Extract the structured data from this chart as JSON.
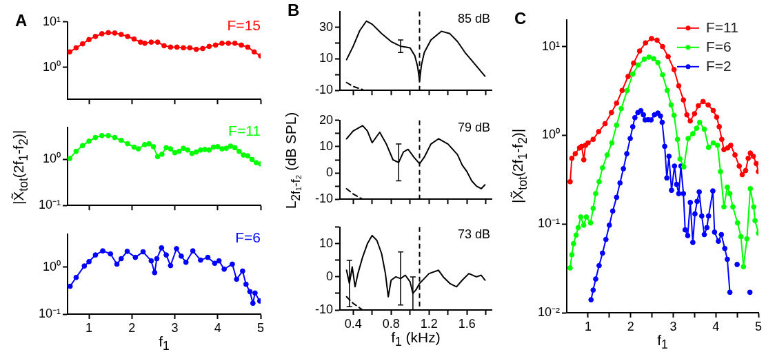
{
  "chart_data": [
    {
      "type": "line",
      "title": "A",
      "marker": "circle",
      "log": true,
      "tick_labels": "y",
      "xlim": [
        0.5,
        5
      ],
      "xticks": [
        1,
        2,
        3,
        4,
        5
      ],
      "ylim": [
        0.2,
        10
      ],
      "yticks": [
        {
          "value": 1,
          "label": "10⁰"
        },
        {
          "value": 10,
          "label": "10¹"
        }
      ],
      "series": [
        {
          "name": "F=15",
          "color": "#ff0000",
          "x": [
            0.55,
            0.7,
            0.85,
            1.0,
            1.15,
            1.3,
            1.45,
            1.6,
            1.75,
            1.9,
            2.05,
            2.2,
            2.3,
            2.45,
            2.6,
            2.75,
            2.9,
            3.05,
            3.2,
            3.35,
            3.5,
            3.65,
            3.8,
            3.95,
            4.1,
            4.25,
            4.4,
            4.55,
            4.7,
            4.85,
            5.0
          ],
          "values": [
            2.2,
            2.7,
            3.3,
            4.1,
            4.8,
            5.5,
            5.8,
            5.7,
            5.3,
            4.8,
            4.2,
            3.6,
            3.4,
            3.6,
            3.6,
            3.0,
            2.8,
            2.8,
            2.7,
            2.7,
            2.5,
            2.6,
            2.9,
            3.1,
            3.4,
            3.4,
            3.4,
            3.1,
            2.8,
            2.2,
            1.8
          ]
        }
      ]
    },
    {
      "type": "line",
      "marker": "circle",
      "log": true,
      "tick_labels": "y",
      "ylabel": "|X̃$_{tot}$(2f$_{1}$-f$_{2}$)|",
      "xlim": [
        0.5,
        5
      ],
      "xticks": [
        1,
        2,
        3,
        4,
        5
      ],
      "ylim": [
        0.1,
        5
      ],
      "yticks": [
        {
          "value": 0.1,
          "label": "10⁻¹"
        },
        {
          "value": 1,
          "label": "10⁰"
        }
      ],
      "series": [
        {
          "name": "F=11",
          "color": "#00ff00",
          "x": [
            0.55,
            0.7,
            0.85,
            1.0,
            1.15,
            1.3,
            1.45,
            1.6,
            1.75,
            1.9,
            2.05,
            2.15,
            2.3,
            2.4,
            2.5,
            2.6,
            2.7,
            2.8,
            2.9,
            3.0,
            3.1,
            3.2,
            3.3,
            3.4,
            3.5,
            3.6,
            3.7,
            3.8,
            3.9,
            4.0,
            4.1,
            4.2,
            4.3,
            4.4,
            4.5,
            4.6,
            4.7,
            4.8,
            4.9,
            5.0
          ],
          "values": [
            1.05,
            1.5,
            2.0,
            2.5,
            3.0,
            3.3,
            3.3,
            3.0,
            2.6,
            2.2,
            1.85,
            1.7,
            2.1,
            2.2,
            1.9,
            1.15,
            1.3,
            1.8,
            1.7,
            1.4,
            1.5,
            1.75,
            1.6,
            1.35,
            1.45,
            1.6,
            1.65,
            1.6,
            1.85,
            1.9,
            1.7,
            1.75,
            1.95,
            1.8,
            1.5,
            1.25,
            1.2,
            1.0,
            0.85,
            0.8
          ]
        }
      ]
    },
    {
      "type": "line",
      "marker": "circle",
      "log": true,
      "xlabel": "f$_{1}$",
      "xlim": [
        0.5,
        5
      ],
      "xticks": [
        1,
        2,
        3,
        4,
        5
      ],
      "ylim": [
        0.1,
        5
      ],
      "yticks": [
        {
          "value": 0.1,
          "label": "10⁻¹"
        },
        {
          "value": 1,
          "label": "10⁰"
        }
      ],
      "series": [
        {
          "name": "F=6",
          "color": "#0000ff",
          "x": [
            0.56,
            0.7,
            0.89,
            1.0,
            1.15,
            1.32,
            1.5,
            1.65,
            1.75,
            1.89,
            2.08,
            2.26,
            2.45,
            2.53,
            2.58,
            2.69,
            2.8,
            2.9,
            3.04,
            3.15,
            3.26,
            3.42,
            3.6,
            3.77,
            3.93,
            4.03,
            4.15,
            4.34,
            4.44,
            4.58,
            4.66,
            4.75,
            4.82,
            4.87,
            4.98
          ],
          "values": [
            0.39,
            0.6,
            1.05,
            1.3,
            1.8,
            2.2,
            1.9,
            1.15,
            1.5,
            2.15,
            1.6,
            2.1,
            1.35,
            0.76,
            1.5,
            2.55,
            1.8,
            1.07,
            2.45,
            1.7,
            1.26,
            2.2,
            1.4,
            1.6,
            1.2,
            1.35,
            0.9,
            1.15,
            0.55,
            0.82,
            0.43,
            0.3,
            0.17,
            0.28,
            0.19
          ]
        }
      ]
    },
    {
      "type": "line",
      "title": "B",
      "marker": "none",
      "tick_labels": "y",
      "annotations": [
        "85 dB"
      ],
      "xlim": [
        0.26,
        1.86
      ],
      "xticks": [
        0.4,
        {
          "value": 0.6,
          "label": null
        },
        0.8,
        {
          "value": 1.0,
          "label": null
        },
        1.2,
        {
          "value": 1.4,
          "label": null
        },
        1.6,
        {
          "value": 1.8,
          "label": null
        }
      ],
      "ylim": [
        -10,
        40
      ],
      "yticks": [
        -10,
        {
          "value": 0,
          "label": null
        },
        10,
        {
          "value": 20,
          "label": null
        },
        30
      ],
      "ref_lines": [
        {
          "axis": "x",
          "value": 1.1,
          "line_style": "dashed",
          "color": "#000000"
        }
      ],
      "series": [
        {
          "color": "#000000",
          "x": [
            0.33,
            0.4,
            0.47,
            0.54,
            0.6,
            0.7,
            0.8,
            0.9,
            0.95,
            1.0,
            1.05,
            1.08,
            1.1,
            1.12,
            1.15,
            1.22,
            1.33,
            1.42,
            1.5,
            1.58,
            1.65,
            1.72,
            1.79
          ],
          "values": [
            9.5,
            18,
            28,
            34,
            32,
            26,
            21,
            18,
            17.5,
            17,
            12,
            5,
            -4,
            6,
            14,
            22,
            27.5,
            26,
            21,
            14,
            9,
            4,
            -1
          ],
          "errors": [
            null,
            null,
            null,
            null,
            null,
            null,
            null,
            4,
            null,
            null,
            null,
            null,
            null,
            null,
            null,
            null,
            null,
            null,
            null,
            null,
            null,
            null,
            null
          ]
        },
        {
          "color": "#000000",
          "line_style": "dashed",
          "x": [
            0.33,
            0.4,
            0.5
          ],
          "values": [
            -5,
            -7.5,
            -9.5
          ]
        }
      ]
    },
    {
      "type": "line",
      "marker": "none",
      "tick_labels": "y",
      "annotations": [
        "79 dB"
      ],
      "ylabel": "L$_{2f₁-f₂}$ (dB SPL)",
      "xlim": [
        0.26,
        1.86
      ],
      "xticks": [
        0.4,
        {
          "value": 0.6,
          "label": null
        },
        0.8,
        {
          "value": 1.0,
          "label": null
        },
        1.2,
        {
          "value": 1.4,
          "label": null
        },
        1.6,
        {
          "value": 1.8,
          "label": null
        }
      ],
      "ylim": [
        -10,
        20
      ],
      "yticks": [
        -10,
        {
          "value": -5,
          "label": null
        },
        0,
        {
          "value": 5,
          "label": null
        },
        10,
        {
          "value": 15,
          "label": null
        },
        20
      ],
      "ref_lines": [
        {
          "axis": "x",
          "value": 1.1,
          "line_style": "dashed",
          "color": "#000000"
        }
      ],
      "series": [
        {
          "color": "#000000",
          "x": [
            0.33,
            0.4,
            0.5,
            0.55,
            0.6,
            0.68,
            0.75,
            0.82,
            0.88,
            0.93,
            0.98,
            1.04,
            1.1,
            1.15,
            1.22,
            1.3,
            1.4,
            1.5,
            1.55,
            1.6,
            1.65,
            1.7,
            1.75,
            1.79
          ],
          "values": [
            13,
            16,
            18,
            16,
            11.5,
            15.5,
            11,
            5,
            4,
            8,
            9,
            6,
            3.5,
            6,
            11,
            13,
            11,
            7,
            3,
            0.5,
            -3,
            -5,
            -6,
            -4.5
          ],
          "errors": [
            null,
            null,
            null,
            null,
            null,
            null,
            null,
            null,
            7,
            null,
            null,
            null,
            null,
            null,
            null,
            null,
            null,
            null,
            null,
            null,
            null,
            null,
            null,
            null
          ]
        },
        {
          "color": "#000000",
          "line_style": "dashed",
          "x": [
            0.33,
            0.4,
            0.5
          ],
          "values": [
            -6,
            -8,
            -10
          ]
        }
      ]
    },
    {
      "type": "line",
      "marker": "none",
      "annotations": [
        "73 dB"
      ],
      "xlabel": "f$_{1}$ (kHz)",
      "xlim": [
        0.26,
        1.86
      ],
      "xticks": [
        0.4,
        {
          "value": 0.6,
          "label": null
        },
        0.8,
        {
          "value": 1.0,
          "label": null
        },
        1.2,
        {
          "value": 1.4,
          "label": null
        },
        1.6,
        {
          "value": 1.8,
          "label": null
        }
      ],
      "ylim": [
        -10,
        15
      ],
      "yticks": [
        -10,
        {
          "value": -5,
          "label": null
        },
        0,
        {
          "value": 5,
          "label": null
        },
        10,
        {
          "value": 15,
          "label": null
        }
      ],
      "ref_lines": [
        {
          "axis": "x",
          "value": 1.1,
          "line_style": "dashed",
          "color": "#000000"
        }
      ],
      "series": [
        {
          "color": "#000000",
          "x": [
            0.33,
            0.36,
            0.39,
            0.42,
            0.45,
            0.5,
            0.55,
            0.6,
            0.65,
            0.7,
            0.74,
            0.77,
            0.8,
            0.85,
            0.9,
            0.95,
            1.0,
            1.03,
            1.06,
            1.1,
            1.15,
            1.2,
            1.3,
            1.35,
            1.42,
            1.49,
            1.55,
            1.62,
            1.7,
            1.75,
            1.79
          ],
          "values": [
            2,
            -2,
            3,
            -3,
            1,
            6,
            10,
            12.5,
            11,
            7,
            1,
            -6,
            -1,
            0,
            -0.5,
            0.5,
            -1.5,
            -5,
            -4,
            -2,
            -0.5,
            1,
            2,
            0,
            -2,
            -3,
            -1,
            1,
            0,
            0.5,
            -1
          ],
          "errors": [
            null,
            7,
            null,
            null,
            null,
            null,
            null,
            null,
            null,
            null,
            null,
            null,
            null,
            null,
            8,
            null,
            null,
            5,
            null,
            null,
            null,
            null,
            null,
            null,
            null,
            null,
            null,
            null,
            null,
            null,
            null
          ]
        },
        {
          "color": "#000000",
          "line_style": "dashed",
          "x": [
            0.33,
            0.4,
            0.45,
            0.5
          ],
          "values": [
            -6,
            -8,
            -9,
            -10
          ]
        }
      ]
    },
    {
      "type": "line",
      "title": "C",
      "marker": "circle",
      "log": true,
      "legend": "top right",
      "xlabel": "f$_{1}$",
      "ylabel": "|X̃$_{tot}$(2f$_{1}$-f$_{2}$)|",
      "xlim": [
        0.5,
        5
      ],
      "xticks": [
        1,
        {
          "value": 1.5,
          "label": null
        },
        2,
        {
          "value": 2.5,
          "label": null
        },
        3,
        {
          "value": 3.5,
          "label": null
        },
        4,
        {
          "value": 4.5,
          "label": null
        },
        5
      ],
      "ylim": [
        0.01,
        20
      ],
      "yticks": [
        {
          "value": 0.01,
          "label": "10⁻²"
        },
        {
          "value": 0.1,
          "label": "10⁻¹"
        },
        {
          "value": 1,
          "label": "10⁰"
        },
        {
          "value": 10,
          "label": "10¹"
        }
      ],
      "series": [
        {
          "name": "F=11",
          "color": "#ff0000",
          "x": [
            0.58,
            0.62,
            0.7,
            0.8,
            0.85,
            0.9,
            0.94,
            1.0,
            1.12,
            1.25,
            1.4,
            1.55,
            1.67,
            1.8,
            1.94,
            2.07,
            2.21,
            2.35,
            2.49,
            2.62,
            2.75,
            2.88,
            3.02,
            3.13,
            3.24,
            3.32,
            3.4,
            3.5,
            3.59,
            3.7,
            3.82,
            3.94,
            4.02,
            4.08,
            4.14,
            4.19,
            4.28,
            4.35,
            4.45,
            4.55,
            4.62,
            4.7,
            4.76,
            4.81,
            4.88,
            4.95,
            5.0
          ],
          "values": [
            0.3,
            0.55,
            0.62,
            0.72,
            0.75,
            0.53,
            0.77,
            0.82,
            0.9,
            1.1,
            1.35,
            1.8,
            2.3,
            3.2,
            4.6,
            6.5,
            8.9,
            11,
            12.3,
            11.8,
            10,
            7.7,
            5.5,
            3.6,
            2.5,
            1.7,
            1.45,
            1.75,
            2.15,
            2.4,
            2.2,
            1.9,
            1.6,
            1.25,
            0.9,
            0.69,
            0.72,
            0.77,
            0.6,
            0.45,
            0.36,
            0.4,
            0.55,
            0.63,
            0.58,
            0.48,
            0.39
          ]
        },
        {
          "name": "F=6",
          "color": "#00ff00",
          "x": [
            0.58,
            0.62,
            0.66,
            0.72,
            0.77,
            0.83,
            0.9,
            0.96,
            1.06,
            1.12,
            1.18,
            1.26,
            1.34,
            1.45,
            1.56,
            1.67,
            1.78,
            1.92,
            2.05,
            2.18,
            2.32,
            2.43,
            2.54,
            2.64,
            2.75,
            2.86,
            2.95,
            3.02,
            3.1,
            3.16,
            3.25,
            3.35,
            3.46,
            3.55,
            3.62,
            3.73,
            3.83,
            3.94,
            4.04,
            4.11,
            4.19,
            4.27,
            4.33,
            4.4,
            4.51,
            4.59,
            4.65,
            4.73,
            4.81,
            4.89,
            4.92,
            5.0
          ],
          "values": [
            0.032,
            0.045,
            0.06,
            0.075,
            0.091,
            0.12,
            0.097,
            0.12,
            0.103,
            0.15,
            0.22,
            0.3,
            0.43,
            0.6,
            0.82,
            1.3,
            2.0,
            3.2,
            4.9,
            6.2,
            7.2,
            7.6,
            7.3,
            6.6,
            4.8,
            3.2,
            2.2,
            1.68,
            0.9,
            0.54,
            0.44,
            0.92,
            1.04,
            1.2,
            1.4,
            1.17,
            0.73,
            0.82,
            0.77,
            0.39,
            0.156,
            0.26,
            0.22,
            0.156,
            0.103,
            0.072,
            0.033,
            0.068,
            0.25,
            0.156,
            0.109,
            0.079
          ]
        },
        {
          "name": "F=2",
          "color": "#0000ff",
          "x": [
            1.07,
            1.12,
            1.18,
            1.26,
            1.34,
            1.42,
            1.5,
            1.58,
            1.67,
            1.75,
            1.83,
            1.91,
            1.99,
            2.05,
            2.1,
            2.17,
            2.24,
            2.3,
            2.34,
            2.41,
            2.48,
            2.56,
            2.64,
            2.7,
            2.74,
            2.8,
            2.85,
            2.9,
            2.96,
            3.03,
            3.08,
            3.13,
            3.18,
            3.24,
            3.28,
            3.34,
            3.4,
            3.46,
            3.51,
            3.56,
            3.61,
            3.67,
            3.73,
            3.79,
            3.83,
            3.93,
            3.97,
            4.06,
            4.13,
            4.21,
            4.27,
            4.33,
            4.4,
            4.5,
            4.6,
            4.8
          ],
          "values": [
            0.014,
            0.018,
            0.024,
            0.034,
            0.047,
            0.067,
            0.097,
            0.14,
            0.2,
            0.29,
            0.42,
            0.62,
            0.92,
            1.25,
            1.58,
            1.8,
            1.89,
            1.7,
            1.49,
            1.5,
            1.49,
            1.7,
            1.78,
            1.65,
            1.4,
            0.75,
            0.33,
            0.58,
            0.24,
            0.45,
            0.28,
            0.22,
            0.45,
            0.22,
            0.086,
            0.074,
            0.175,
            0.062,
            0.13,
            0.18,
            0.23,
            0.123,
            0.076,
            0.091,
            0.123,
            0.236,
            0.081,
            0.064,
            0.076,
            0.053,
            0.04,
            0.017,
            null,
            0.035,
            null,
            0.017
          ]
        }
      ]
    }
  ]
}
